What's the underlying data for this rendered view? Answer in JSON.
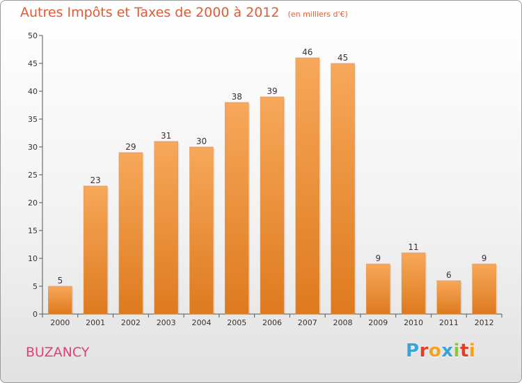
{
  "title": {
    "main": "Autres Impôts et Taxes de 2000 à 2012",
    "unit": "(en milliers d'€)"
  },
  "location": "BUZANCY",
  "logo": {
    "text": "Proxiti",
    "letters": [
      {
        "ch": "P",
        "color": "#3aa3d8"
      },
      {
        "ch": "r",
        "color": "#e0402a"
      },
      {
        "ch": "o",
        "color": "#f4a11e"
      },
      {
        "ch": "x",
        "color": "#3aa3d8"
      },
      {
        "ch": "i",
        "color": "#8cc63f"
      },
      {
        "ch": "t",
        "color": "#e0402a"
      },
      {
        "ch": "i",
        "color": "#f4a11e"
      }
    ]
  },
  "colors": {
    "bar_top": "#f7a85a",
    "bar_bottom": "#de7a1f",
    "title": "#e05a34",
    "city": "#e0407a"
  },
  "chart_data": {
    "type": "bar",
    "categories": [
      "2000",
      "2001",
      "2002",
      "2003",
      "2004",
      "2005",
      "2006",
      "2007",
      "2008",
      "2009",
      "2010",
      "2011",
      "2012"
    ],
    "values": [
      5,
      23,
      29,
      31,
      30,
      38,
      39,
      46,
      45,
      9,
      11,
      6,
      9
    ],
    "ylim": [
      0,
      50
    ],
    "yticks": [
      0,
      5,
      10,
      15,
      20,
      25,
      30,
      35,
      40,
      45,
      50
    ],
    "grid": false,
    "data_labels": true
  }
}
